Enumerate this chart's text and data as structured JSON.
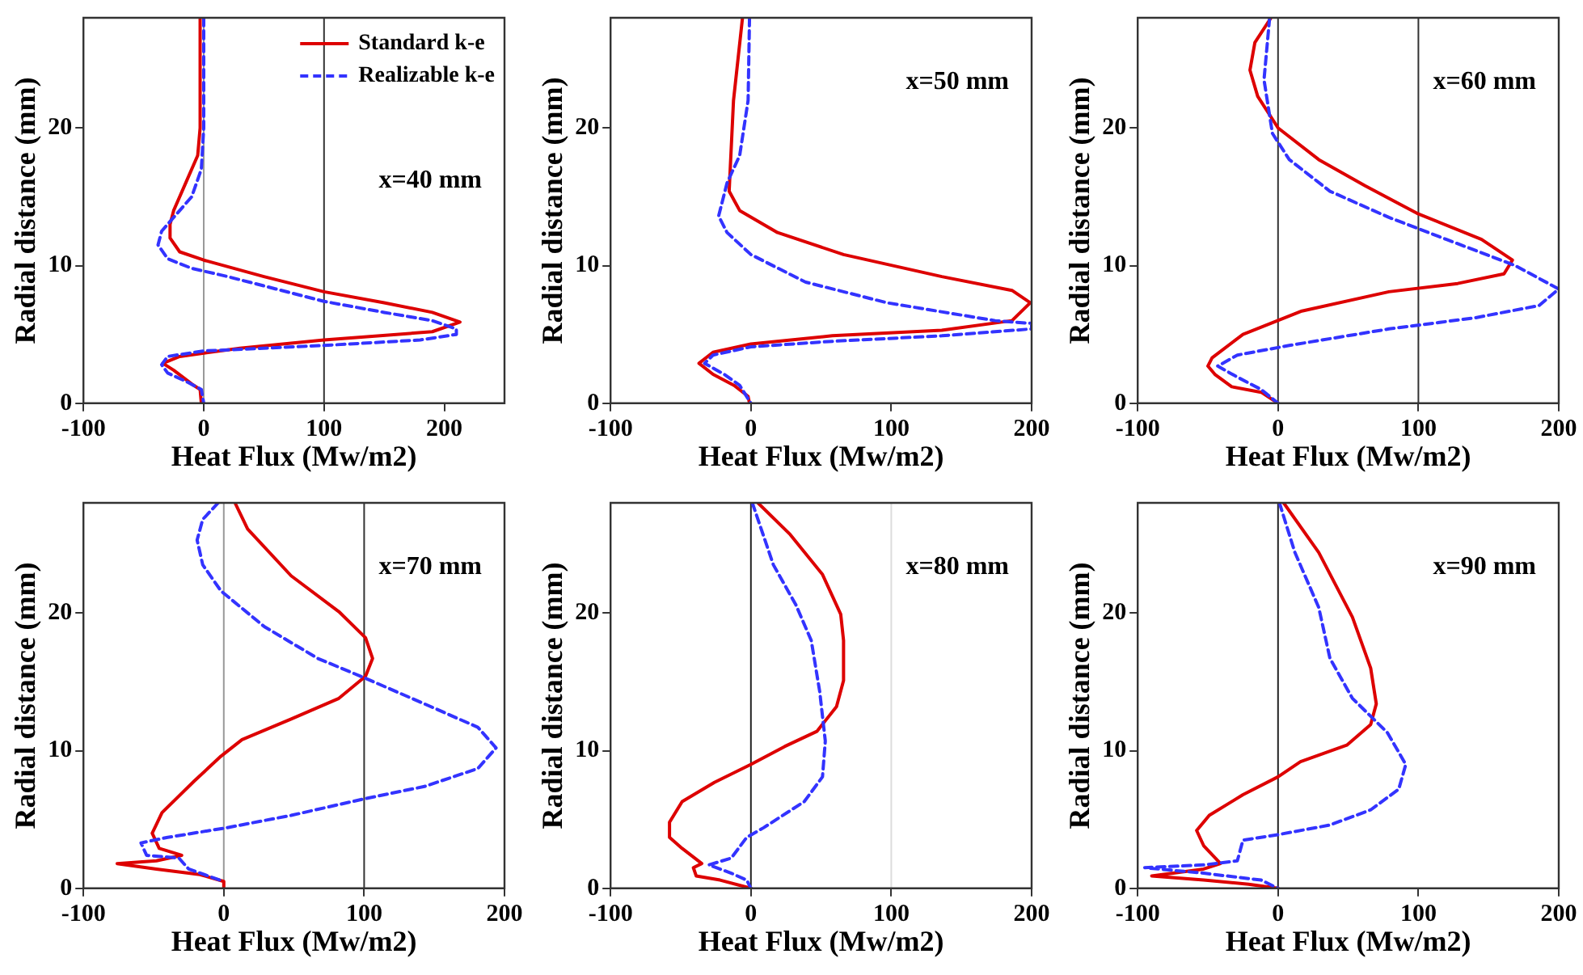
{
  "chart_data": [
    {
      "type": "line",
      "xlabel": "Heat Flux (Mw/m2)",
      "ylabel": "Radial distance (mm)",
      "annotations": [
        "x=40 mm"
      ],
      "xlim": [
        -100,
        250
      ],
      "ylim": [
        0,
        28
      ],
      "xticks": [
        -100,
        0,
        100,
        200
      ],
      "yticks": [
        0,
        10,
        20
      ],
      "legend": "top right",
      "ref_lines": [
        {
          "axis": "x",
          "value": 0,
          "color": "#999999"
        },
        {
          "axis": "x",
          "value": 100,
          "color": "#333333"
        }
      ],
      "series": [
        {
          "name": "Standard k-e",
          "color": "#dd0000",
          "line_style": "solid",
          "x": [
            -3,
            -3,
            -5,
            -15,
            -25,
            -28,
            -28,
            -20,
            0,
            50,
            100,
            150,
            190,
            213,
            190,
            100,
            30,
            -20,
            -34,
            -25,
            -10,
            -3,
            -2
          ],
          "values": [
            28,
            20,
            18,
            16,
            14,
            13,
            12,
            11,
            10.4,
            9.2,
            8.1,
            7.3,
            6.6,
            5.9,
            5.2,
            4.6,
            4,
            3.4,
            2.9,
            2.4,
            1.4,
            1,
            0
          ]
        },
        {
          "name": "Realizable k-e",
          "color": "#3333ff",
          "line_style": "dashed",
          "x": [
            0,
            0,
            -2,
            -10,
            -25,
            -35,
            -38,
            -30,
            -10,
            20,
            60,
            100,
            150,
            190,
            210,
            210,
            180,
            100,
            0,
            -30,
            -35,
            -30,
            -15,
            -2,
            0
          ],
          "values": [
            28,
            20,
            17,
            15,
            13.5,
            12.5,
            11.5,
            10.5,
            9.8,
            9.2,
            8.3,
            7.4,
            6.6,
            6,
            5.4,
            5,
            4.6,
            4.2,
            3.8,
            3.4,
            2.8,
            2.2,
            1.6,
            1,
            0
          ]
        }
      ]
    },
    {
      "type": "line",
      "xlabel": "Heat Flux (Mw/m2)",
      "ylabel": "Radial distance (mm)",
      "annotations": [
        "x=50 mm"
      ],
      "xlim": [
        -100,
        200
      ],
      "ylim": [
        0,
        28
      ],
      "xticks": [
        -100,
        0,
        100,
        200
      ],
      "yticks": [
        0,
        10,
        20
      ],
      "series": [
        {
          "color": "#dd0000",
          "line_style": "solid",
          "x": [
            -6,
            -12.4,
            -15.5,
            -8,
            19,
            66,
            136,
            186,
            199,
            186,
            136,
            58,
            0,
            -27,
            -37,
            -27,
            -12,
            -2,
            -1
          ],
          "values": [
            28,
            22,
            15.4,
            14,
            12.4,
            10.8,
            9.2,
            8.2,
            7.3,
            6,
            5.3,
            4.9,
            4.3,
            3.7,
            2.9,
            2.1,
            1.3,
            0.5,
            0
          ]
        },
        {
          "color": "#3333ff",
          "line_style": "dashed",
          "x": [
            -1,
            -2,
            -8,
            -17,
            -23,
            -17,
            0,
            39,
            97,
            174,
            200,
            200,
            136,
            58,
            0,
            -27,
            -33,
            -19,
            -8,
            0
          ],
          "values": [
            28,
            22,
            18,
            16,
            13.6,
            12.4,
            10.8,
            8.8,
            7.3,
            6,
            5.8,
            5.4,
            4.9,
            4.5,
            4.1,
            3.5,
            2.9,
            2.1,
            1.3,
            0
          ]
        }
      ]
    },
    {
      "type": "line",
      "xlabel": "Heat Flux (Mw/m2)",
      "ylabel": "Radial distance (mm)",
      "annotations": [
        "x=60 mm"
      ],
      "xlim": [
        -100,
        200
      ],
      "ylim": [
        0,
        28
      ],
      "xticks": [
        -100,
        0,
        100,
        200
      ],
      "yticks": [
        0,
        10,
        20
      ],
      "ref_lines": [
        {
          "axis": "x",
          "value": 0,
          "color": "#333333"
        },
        {
          "axis": "x",
          "value": 100,
          "color": "#333333"
        }
      ],
      "series": [
        {
          "color": "#dd0000",
          "line_style": "solid",
          "x": [
            -5,
            -16.5,
            -20,
            -14.5,
            0,
            29,
            62,
            99,
            145,
            167,
            161,
            128,
            79,
            17,
            -25,
            -47,
            -50,
            -45,
            -33,
            -12,
            0
          ],
          "values": [
            28,
            26.2,
            24.2,
            22.3,
            20,
            17.7,
            15.8,
            13.8,
            11.9,
            10.4,
            9.4,
            8.7,
            8.1,
            6.7,
            5,
            3.3,
            2.7,
            2.1,
            1.2,
            0.8,
            0
          ]
        },
        {
          "color": "#3333ff",
          "line_style": "dashed",
          "x": [
            -6,
            -10,
            -4,
            8,
            37,
            79,
            120,
            169,
            200,
            186,
            140,
            79,
            8,
            -29,
            -43,
            -29,
            -12,
            0
          ],
          "values": [
            28,
            23.5,
            19.6,
            17.7,
            15.4,
            13.5,
            11.9,
            10,
            8.3,
            7.1,
            6.2,
            5.4,
            4.2,
            3.5,
            2.7,
            1.9,
            1,
            0
          ]
        }
      ]
    },
    {
      "type": "line",
      "xlabel": "Heat Flux (Mw/m2)",
      "ylabel": "Radial distance (mm)",
      "annotations": [
        "x=70 mm"
      ],
      "xlim": [
        -100,
        200
      ],
      "ylim": [
        0,
        28
      ],
      "xticks": [
        -100,
        0,
        100,
        200
      ],
      "yticks": [
        0,
        10,
        20
      ],
      "ref_lines": [
        {
          "axis": "x",
          "value": 0,
          "color": "#999999"
        },
        {
          "axis": "x",
          "value": 100,
          "color": "#333333"
        }
      ],
      "series": [
        {
          "color": "#dd0000",
          "line_style": "solid",
          "x": [
            8,
            17,
            48,
            82,
            101,
            106,
            101,
            82,
            48,
            13,
            -2,
            -21,
            -44,
            -51,
            -46,
            -30,
            -48,
            -76,
            -48,
            -17,
            0,
            0
          ],
          "values": [
            28,
            26.1,
            22.7,
            20.1,
            18.2,
            16.7,
            15.4,
            13.8,
            12.3,
            10.8,
            9.6,
            7.8,
            5.5,
            4,
            2.9,
            2.4,
            2,
            1.8,
            1.4,
            1,
            0.5,
            0
          ]
        },
        {
          "color": "#3333ff",
          "line_style": "dashed",
          "x": [
            -4,
            -15,
            -19,
            -15,
            -2,
            29,
            67,
            100,
            143,
            181,
            194,
            181,
            143,
            100,
            48,
            2,
            -40,
            -59,
            -55,
            -32,
            -25,
            0
          ],
          "values": [
            28,
            26.8,
            25.3,
            23.5,
            21.6,
            19,
            16.7,
            15.3,
            13.4,
            11.7,
            10.2,
            8.7,
            7.4,
            6.5,
            5.3,
            4.4,
            3.7,
            3.3,
            2.4,
            2.2,
            1.4,
            0.5
          ]
        }
      ]
    },
    {
      "type": "line",
      "xlabel": "Heat Flux (Mw/m2)",
      "ylabel": "Radial distance (mm)",
      "annotations": [
        "x=80 mm"
      ],
      "xlim": [
        -100,
        200
      ],
      "ylim": [
        0,
        28
      ],
      "xticks": [
        -100,
        0,
        100,
        200
      ],
      "yticks": [
        0,
        10,
        20
      ],
      "ref_lines": [
        {
          "axis": "x",
          "value": 0,
          "color": "#222222"
        },
        {
          "axis": "x",
          "value": 100,
          "color": "#dddddd"
        }
      ],
      "series": [
        {
          "color": "#dd0000",
          "line_style": "solid",
          "x": [
            5,
            28,
            51,
            64,
            66,
            66,
            61,
            47,
            24,
            0,
            -26,
            -49,
            -58,
            -58,
            -49,
            -35,
            -41,
            -39,
            -22,
            0
          ],
          "values": [
            28,
            25.7,
            22.8,
            19.9,
            18,
            15.1,
            13.2,
            11.4,
            10.3,
            9,
            7.7,
            6.3,
            4.8,
            3.7,
            2.9,
            1.8,
            1.5,
            0.9,
            0.6,
            0
          ]
        },
        {
          "color": "#3333ff",
          "line_style": "dashed",
          "x": [
            1,
            5,
            16,
            32,
            43,
            49,
            53,
            51,
            38,
            9,
            -3,
            -14,
            -30,
            -14,
            -3,
            0
          ],
          "values": [
            28,
            26.8,
            23.5,
            20.6,
            18,
            14.3,
            10.7,
            8.1,
            6.3,
            4.4,
            3.7,
            2.2,
            1.7,
            1.1,
            0.6,
            0
          ]
        }
      ]
    },
    {
      "type": "line",
      "xlabel": "Heat Flux (Mw/m2)",
      "ylabel": "Radial distance (mm)",
      "annotations": [
        "x=90 mm"
      ],
      "xlim": [
        -100,
        200
      ],
      "ylim": [
        0,
        28
      ],
      "xticks": [
        -100,
        0,
        100,
        200
      ],
      "yticks": [
        0,
        10,
        20
      ],
      "ref_lines": [
        {
          "axis": "x",
          "value": 0,
          "color": "#222222"
        }
      ],
      "series": [
        {
          "color": "#dd0000",
          "line_style": "solid",
          "x": [
            4,
            29,
            53,
            66,
            70,
            66,
            49,
            16,
            0,
            -25,
            -49,
            -58,
            -53,
            -41,
            -53,
            -90,
            -53,
            -21,
            0
          ],
          "values": [
            28,
            24.4,
            19.7,
            16,
            13.4,
            11.9,
            10.4,
            9.2,
            8.1,
            6.8,
            5.3,
            4.2,
            3.1,
            1.8,
            1.4,
            0.9,
            0.6,
            0.3,
            0
          ]
        },
        {
          "color": "#3333ff",
          "line_style": "dashed",
          "x": [
            1,
            12,
            29,
            37,
            53,
            78,
            91,
            86,
            66,
            37,
            0,
            -25,
            -29,
            -53,
            -95,
            -53,
            -12,
            0
          ],
          "values": [
            28,
            24.4,
            20.4,
            16.7,
            13.8,
            11.3,
            9,
            7.2,
            5.7,
            4.6,
            3.9,
            3.5,
            2,
            1.7,
            1.5,
            1.1,
            0.6,
            0
          ]
        }
      ]
    }
  ]
}
